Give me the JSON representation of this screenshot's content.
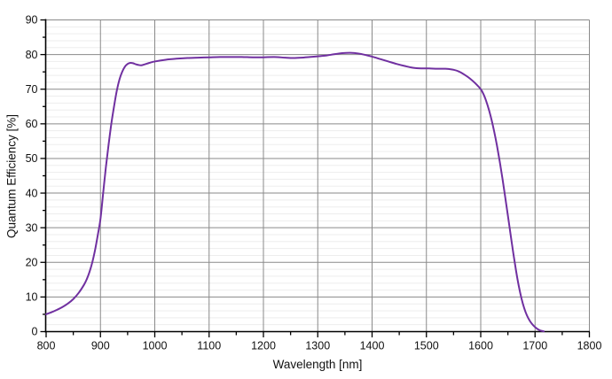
{
  "figure": {
    "background": "#ffffff",
    "text_color": "#111111"
  },
  "chart_data": {
    "type": "line",
    "title": "",
    "xlabel": "Wavelength [nm]",
    "ylabel": "Quantum Efficiency [%]",
    "xlim": [
      800,
      1800
    ],
    "ylim": [
      0,
      90
    ],
    "legend": "none",
    "grid": {
      "major_color": "#8a8a8a",
      "minor_color": "#ededed",
      "axis_color": "#000000",
      "y_major_step": 10,
      "y_minor_grid_step": 2,
      "y_minor_tick_step": 5,
      "x_major_step": 100,
      "x_minor_tick_step": 50,
      "x_minor_grid": false
    },
    "x_ticks": [
      {
        "v": 800,
        "label": "800"
      },
      {
        "v": 900,
        "label": "900"
      },
      {
        "v": 1000,
        "label": "1000"
      },
      {
        "v": 1100,
        "label": "1100"
      },
      {
        "v": 1200,
        "label": "1200"
      },
      {
        "v": 1300,
        "label": "1300"
      },
      {
        "v": 1400,
        "label": "1400"
      },
      {
        "v": 1500,
        "label": "1500"
      },
      {
        "v": 1600,
        "label": "1600"
      },
      {
        "v": 1700,
        "label": "1700"
      },
      {
        "v": 1800,
        "label": "1800"
      }
    ],
    "y_ticks": [
      {
        "v": 0,
        "label": "0"
      },
      {
        "v": 10,
        "label": "10"
      },
      {
        "v": 20,
        "label": "20"
      },
      {
        "v": 30,
        "label": "30"
      },
      {
        "v": 40,
        "label": "40"
      },
      {
        "v": 50,
        "label": "50"
      },
      {
        "v": 60,
        "label": "60"
      },
      {
        "v": 70,
        "label": "70"
      },
      {
        "v": 80,
        "label": "80"
      },
      {
        "v": 90,
        "label": "90"
      }
    ],
    "series": [
      {
        "name": "Quantum Efficiency",
        "color": "#7030A0",
        "line_width": 2,
        "points": [
          [
            800,
            5.0
          ],
          [
            810,
            5.6
          ],
          [
            820,
            6.3
          ],
          [
            830,
            7.1
          ],
          [
            840,
            8.1
          ],
          [
            850,
            9.4
          ],
          [
            860,
            11.2
          ],
          [
            870,
            13.6
          ],
          [
            875,
            15.2
          ],
          [
            880,
            17.3
          ],
          [
            885,
            20.0
          ],
          [
            890,
            23.5
          ],
          [
            895,
            27.8
          ],
          [
            900,
            32.5
          ],
          [
            905,
            40.0
          ],
          [
            910,
            47.5
          ],
          [
            915,
            54.0
          ],
          [
            920,
            60.0
          ],
          [
            925,
            65.0
          ],
          [
            930,
            69.5
          ],
          [
            935,
            72.8
          ],
          [
            940,
            75.0
          ],
          [
            945,
            76.5
          ],
          [
            950,
            77.3
          ],
          [
            955,
            77.6
          ],
          [
            960,
            77.5
          ],
          [
            965,
            77.2
          ],
          [
            970,
            77.0
          ],
          [
            975,
            76.9
          ],
          [
            980,
            77.1
          ],
          [
            990,
            77.6
          ],
          [
            1000,
            78.0
          ],
          [
            1020,
            78.5
          ],
          [
            1040,
            78.8
          ],
          [
            1060,
            79.0
          ],
          [
            1080,
            79.1
          ],
          [
            1100,
            79.2
          ],
          [
            1120,
            79.3
          ],
          [
            1140,
            79.3
          ],
          [
            1160,
            79.3
          ],
          [
            1180,
            79.2
          ],
          [
            1200,
            79.2
          ],
          [
            1220,
            79.3
          ],
          [
            1240,
            79.1
          ],
          [
            1255,
            79.0
          ],
          [
            1270,
            79.1
          ],
          [
            1285,
            79.3
          ],
          [
            1300,
            79.5
          ],
          [
            1315,
            79.7
          ],
          [
            1330,
            80.1
          ],
          [
            1345,
            80.4
          ],
          [
            1360,
            80.5
          ],
          [
            1375,
            80.3
          ],
          [
            1390,
            79.8
          ],
          [
            1400,
            79.4
          ],
          [
            1415,
            78.7
          ],
          [
            1430,
            78.0
          ],
          [
            1445,
            77.3
          ],
          [
            1460,
            76.7
          ],
          [
            1475,
            76.2
          ],
          [
            1490,
            76.0
          ],
          [
            1505,
            76.0
          ],
          [
            1520,
            75.9
          ],
          [
            1535,
            75.9
          ],
          [
            1550,
            75.6
          ],
          [
            1560,
            75.1
          ],
          [
            1570,
            74.2
          ],
          [
            1580,
            73.1
          ],
          [
            1590,
            71.7
          ],
          [
            1600,
            70.0
          ],
          [
            1605,
            68.6
          ],
          [
            1610,
            66.6
          ],
          [
            1615,
            64.1
          ],
          [
            1620,
            61.1
          ],
          [
            1625,
            57.6
          ],
          [
            1630,
            53.6
          ],
          [
            1635,
            49.1
          ],
          [
            1640,
            44.2
          ],
          [
            1645,
            38.9
          ],
          [
            1650,
            33.5
          ],
          [
            1655,
            28.0
          ],
          [
            1660,
            22.6
          ],
          [
            1665,
            17.6
          ],
          [
            1670,
            13.2
          ],
          [
            1675,
            9.6
          ],
          [
            1680,
            6.8
          ],
          [
            1685,
            4.7
          ],
          [
            1690,
            3.2
          ],
          [
            1695,
            2.1
          ],
          [
            1700,
            1.3
          ],
          [
            1705,
            0.7
          ],
          [
            1710,
            0.3
          ],
          [
            1716,
            0.1
          ]
        ]
      }
    ]
  }
}
